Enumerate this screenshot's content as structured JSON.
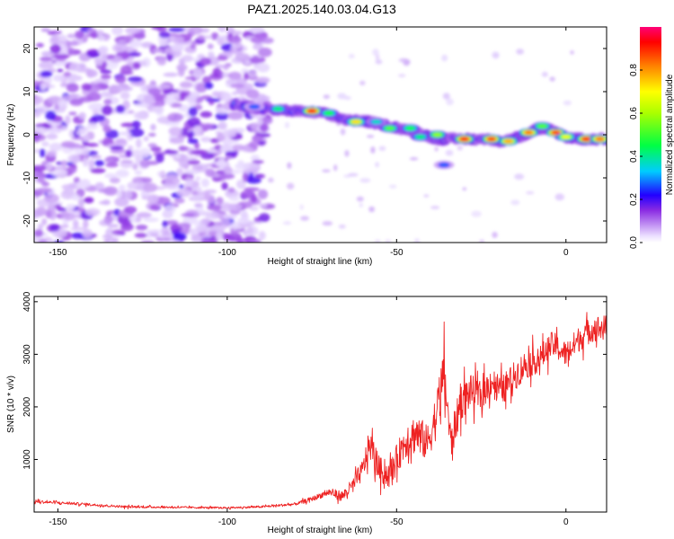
{
  "title": "PAZ1.2025.140.03.04.G13",
  "chart_data": [
    {
      "type": "heatmap",
      "xlabel": "Height of straight line (km)",
      "ylabel": "Frequency (Hz)",
      "xlim": [
        -157,
        12
      ],
      "ylim": [
        -25,
        25
      ],
      "x_ticks": [
        -150,
        -100,
        -50,
        0
      ],
      "y_ticks": [
        -20,
        -10,
        0,
        10,
        20
      ],
      "colorbar": {
        "label": "Normalized spectral amplitude",
        "range": [
          0.0,
          1.0
        ],
        "ticks": [
          0.0,
          0.2,
          0.4,
          0.6,
          0.8
        ],
        "colormap": [
          "#ffffff",
          "#7f00ff",
          "#0000ff",
          "#00ffff",
          "#00ff00",
          "#ffff00",
          "#ff8000",
          "#ff0000",
          "#ff0080"
        ]
      },
      "noise_region_x": [
        -157,
        -88
      ],
      "ridge_segments": [
        {
          "x": [
            -98,
            -90,
            -80,
            -72,
            -65,
            -58,
            -52,
            -46,
            -42,
            -38,
            -33
          ],
          "y": [
            7,
            6,
            5.5,
            5,
            3.5,
            3,
            2,
            1,
            0,
            -1,
            -1
          ]
        },
        {
          "x": [
            -33,
            -25,
            -18,
            -12,
            -8,
            -4,
            0,
            5,
            12
          ],
          "y": [
            -1,
            -1,
            -1.5,
            0,
            1.5,
            1,
            -0.5,
            -1,
            -1
          ]
        }
      ],
      "blobs": [
        {
          "x": -75,
          "y": 5.5,
          "amp": 0.95
        },
        {
          "x": -92,
          "y": 6.5,
          "amp": 0.3
        },
        {
          "x": -85,
          "y": 6,
          "amp": 0.45
        },
        {
          "x": -70,
          "y": 5,
          "amp": 0.5
        },
        {
          "x": -62,
          "y": 3,
          "amp": 0.75
        },
        {
          "x": -56,
          "y": 3,
          "amp": 0.4
        },
        {
          "x": -52,
          "y": 1.5,
          "amp": 0.55
        },
        {
          "x": -46,
          "y": 1.5,
          "amp": 0.5
        },
        {
          "x": -43,
          "y": -0.5,
          "amp": 0.45
        },
        {
          "x": -38,
          "y": 0,
          "amp": 0.6
        },
        {
          "x": -36,
          "y": -7,
          "amp": 0.3
        },
        {
          "x": -30,
          "y": -1,
          "amp": 0.95
        },
        {
          "x": -22,
          "y": -1,
          "amp": 0.9
        },
        {
          "x": -17,
          "y": -1.5,
          "amp": 0.8
        },
        {
          "x": -11,
          "y": 0.5,
          "amp": 0.85
        },
        {
          "x": -7,
          "y": 2,
          "amp": 0.55
        },
        {
          "x": -3,
          "y": 0.5,
          "amp": 0.9
        },
        {
          "x": 0,
          "y": -0.5,
          "amp": 0.7
        },
        {
          "x": 6,
          "y": -1,
          "amp": 0.95
        },
        {
          "x": 10,
          "y": -1,
          "amp": 0.85
        }
      ]
    },
    {
      "type": "line",
      "xlabel": "Height of straight line (km)",
      "ylabel": "SNR (10 * v/v)",
      "xlim": [
        -157,
        12
      ],
      "ylim": [
        0,
        4100
      ],
      "x_ticks": [
        -150,
        -100,
        -50,
        0
      ],
      "y_ticks": [
        1000,
        2000,
        3000,
        4000
      ],
      "line_color": "#ee2222",
      "series": [
        {
          "x": [
            -157,
            -145,
            -130,
            -115,
            -100,
            -90,
            -80,
            -75,
            -70,
            -66,
            -63,
            -60,
            -58,
            -55,
            -52,
            -50,
            -47,
            -44,
            -41,
            -38,
            -36,
            -34,
            -31,
            -28,
            -25,
            -22,
            -19,
            -15,
            -12,
            -8,
            -4,
            0,
            4,
            8,
            12
          ],
          "y": [
            200,
            160,
            100,
            90,
            80,
            100,
            150,
            250,
            380,
            300,
            500,
            800,
            1300,
            800,
            700,
            1000,
            1400,
            1500,
            1300,
            1900,
            2700,
            1300,
            2100,
            2300,
            2200,
            2500,
            2300,
            2600,
            2800,
            2900,
            3200,
            3000,
            3300,
            3500,
            3500
          ],
          "noise_amp": [
            40,
            35,
            30,
            25,
            25,
            30,
            40,
            60,
            100,
            150,
            200,
            300,
            400,
            350,
            350,
            400,
            500,
            550,
            500,
            650,
            700,
            500,
            500,
            450,
            400,
            400,
            400,
            400,
            400,
            350,
            350,
            350,
            350,
            350,
            350
          ]
        }
      ]
    }
  ]
}
